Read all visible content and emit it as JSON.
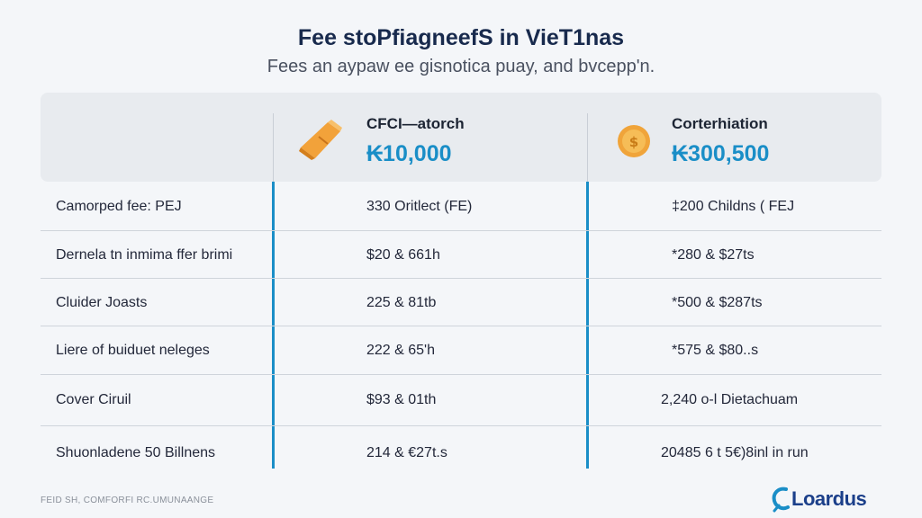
{
  "header": {
    "title": "Fee stoPfiagneefS in VieT1nas",
    "subtitle": "Fees an aypaw ee gisnotica puay, and bvcepp'n."
  },
  "plans": [
    {
      "name": "CFCI—atorch",
      "price": "₭10,000",
      "icon": "ticket-icon",
      "accent": "#f2a23a"
    },
    {
      "name": "Corterhiation",
      "price": "₭300,500",
      "icon": "coin-icon",
      "accent": "#f0a43a"
    }
  ],
  "rows": [
    {
      "label": "Camorped fee: PEJ",
      "plan1": "330 Oritlect (FE)",
      "plan2": "‡200 Childns ( FEJ"
    },
    {
      "label": "Dernela tn inmima ffer brimi",
      "plan1": "$20 & 661h",
      "plan2": "*280 & $27ts"
    },
    {
      "label": "Cluider Joasts",
      "plan1": "225 & 81tb",
      "plan2": "*500 & $287ts"
    },
    {
      "label": "Liere of buiduet neleges",
      "plan1": "222 & 65'h",
      "plan2": "*575 & $80..s"
    },
    {
      "label": "Cover Ciruil",
      "plan1": "$93 & 01th",
      "plan2": "2,240 o-l Dietachuam"
    },
    {
      "label": "Shuonladene 50 Billnens",
      "plan1": "214 & €27t.s",
      "plan2": "20485 6 t 5€)8inl in run"
    }
  ],
  "footer": {
    "note": "FEID SH, COMFORFI RC.UMUNAANGE",
    "brand": "Loardus"
  },
  "colors": {
    "accent_blue": "#1a8ec7",
    "title_navy": "#182a4d",
    "brand_navy": "#1b3f8a"
  }
}
